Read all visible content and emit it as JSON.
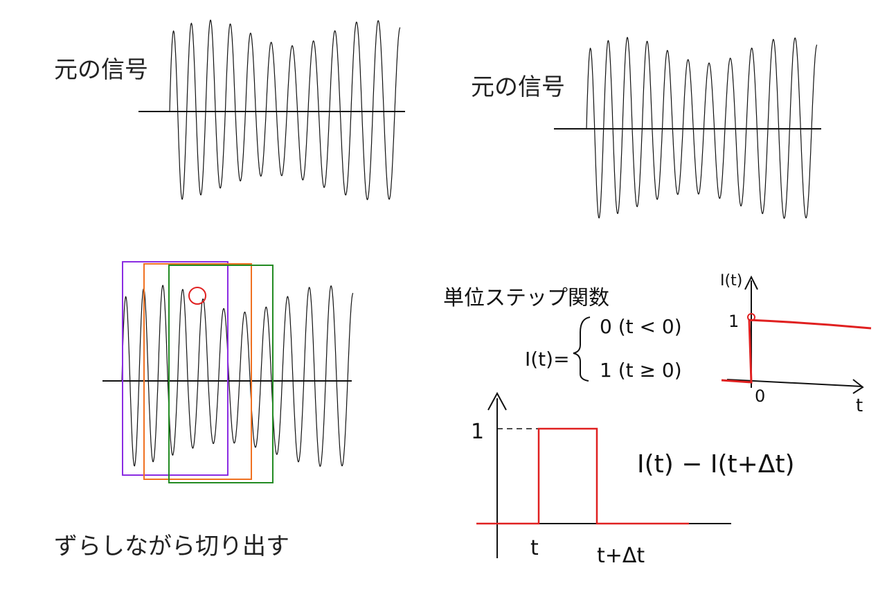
{
  "panels": {
    "top_left": {
      "label": "元の信号"
    },
    "top_right": {
      "label": "元の信号"
    },
    "bottom_left": {
      "caption": "ずらしながら切り出す",
      "windows": [
        {
          "name": "window-1",
          "color": "#8a2be2"
        },
        {
          "name": "window-2",
          "color": "#f07020"
        },
        {
          "name": "window-3",
          "color": "#228b22"
        }
      ],
      "marker_color": "#e02020"
    },
    "step_function": {
      "title": "単位ステップ関数",
      "definition_lhs": "I(t)=",
      "case_1": "0 (t < 0)",
      "case_2": "1 (t ≥ 0)",
      "plot": {
        "y_label": "I(t)",
        "x_label": "t",
        "y_tick": "1",
        "origin": "0",
        "color": "#e02020"
      }
    },
    "pulse": {
      "y_tick": "1",
      "x_tick_start": "t",
      "x_tick_end": "t+Δt",
      "formula": "I(t) − I(t+Δt)",
      "color": "#e02020"
    }
  }
}
